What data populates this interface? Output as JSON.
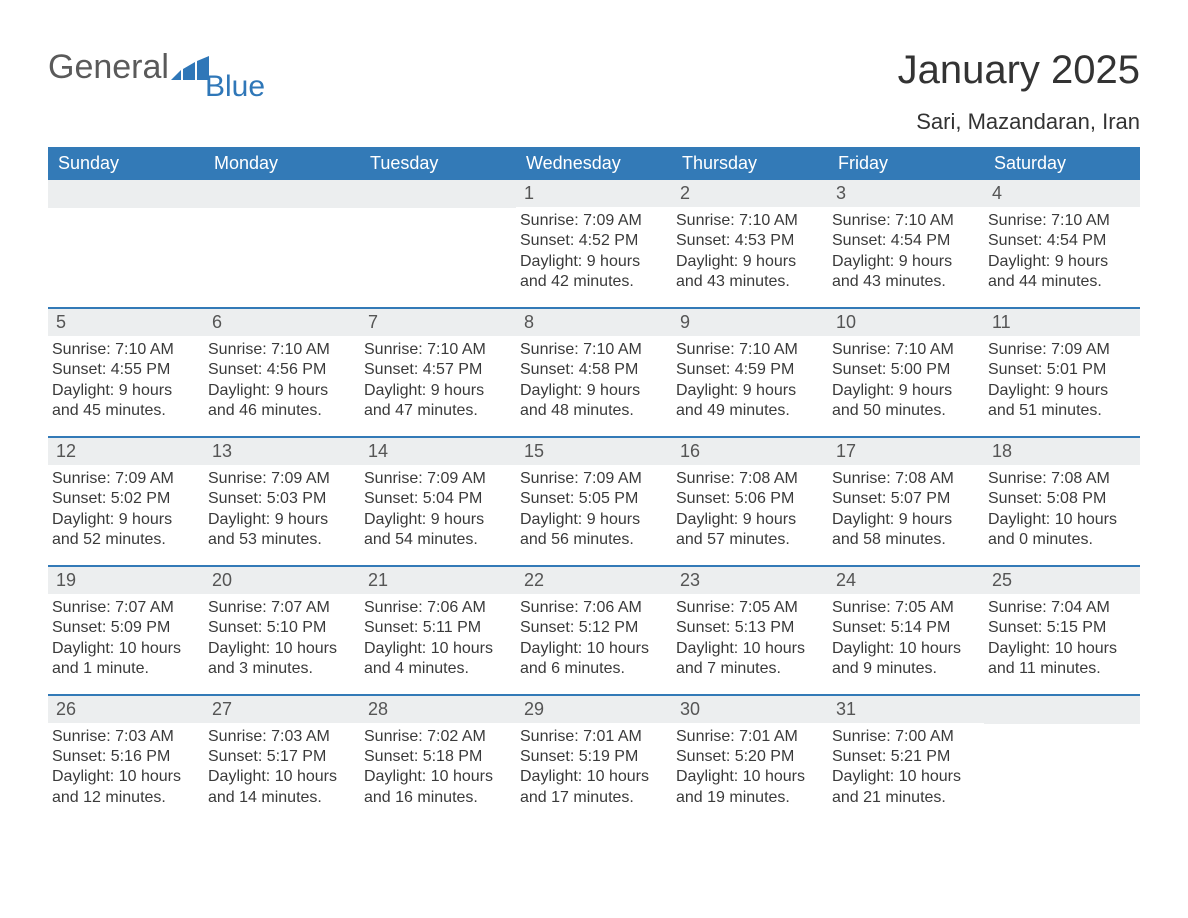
{
  "logo": {
    "general": "General",
    "blue": "Blue"
  },
  "title": {
    "month": "January 2025",
    "location": "Sari, Mazandaran, Iran"
  },
  "colors": {
    "header_bg": "#337ab7",
    "header_text": "#ffffff",
    "daynum_bg": "#eceeef",
    "daynum_text": "#555555",
    "body_text": "#3a3a3a",
    "week_divider": "#337ab7",
    "logo_gray": "#5a5a5a",
    "logo_blue": "#2f77b8",
    "background": "#ffffff"
  },
  "typography": {
    "month_fontsize": 40,
    "location_fontsize": 22,
    "dayname_fontsize": 18,
    "daynum_fontsize": 18,
    "body_fontsize": 16,
    "font_family": "Arial"
  },
  "daynames": [
    "Sunday",
    "Monday",
    "Tuesday",
    "Wednesday",
    "Thursday",
    "Friday",
    "Saturday"
  ],
  "leading_empty": 3,
  "trailing_empty": 1,
  "days": [
    {
      "n": "1",
      "sunrise": "Sunrise: 7:09 AM",
      "sunset": "Sunset: 4:52 PM",
      "dl1": "Daylight: 9 hours",
      "dl2": "and 42 minutes."
    },
    {
      "n": "2",
      "sunrise": "Sunrise: 7:10 AM",
      "sunset": "Sunset: 4:53 PM",
      "dl1": "Daylight: 9 hours",
      "dl2": "and 43 minutes."
    },
    {
      "n": "3",
      "sunrise": "Sunrise: 7:10 AM",
      "sunset": "Sunset: 4:54 PM",
      "dl1": "Daylight: 9 hours",
      "dl2": "and 43 minutes."
    },
    {
      "n": "4",
      "sunrise": "Sunrise: 7:10 AM",
      "sunset": "Sunset: 4:54 PM",
      "dl1": "Daylight: 9 hours",
      "dl2": "and 44 minutes."
    },
    {
      "n": "5",
      "sunrise": "Sunrise: 7:10 AM",
      "sunset": "Sunset: 4:55 PM",
      "dl1": "Daylight: 9 hours",
      "dl2": "and 45 minutes."
    },
    {
      "n": "6",
      "sunrise": "Sunrise: 7:10 AM",
      "sunset": "Sunset: 4:56 PM",
      "dl1": "Daylight: 9 hours",
      "dl2": "and 46 minutes."
    },
    {
      "n": "7",
      "sunrise": "Sunrise: 7:10 AM",
      "sunset": "Sunset: 4:57 PM",
      "dl1": "Daylight: 9 hours",
      "dl2": "and 47 minutes."
    },
    {
      "n": "8",
      "sunrise": "Sunrise: 7:10 AM",
      "sunset": "Sunset: 4:58 PM",
      "dl1": "Daylight: 9 hours",
      "dl2": "and 48 minutes."
    },
    {
      "n": "9",
      "sunrise": "Sunrise: 7:10 AM",
      "sunset": "Sunset: 4:59 PM",
      "dl1": "Daylight: 9 hours",
      "dl2": "and 49 minutes."
    },
    {
      "n": "10",
      "sunrise": "Sunrise: 7:10 AM",
      "sunset": "Sunset: 5:00 PM",
      "dl1": "Daylight: 9 hours",
      "dl2": "and 50 minutes."
    },
    {
      "n": "11",
      "sunrise": "Sunrise: 7:09 AM",
      "sunset": "Sunset: 5:01 PM",
      "dl1": "Daylight: 9 hours",
      "dl2": "and 51 minutes."
    },
    {
      "n": "12",
      "sunrise": "Sunrise: 7:09 AM",
      "sunset": "Sunset: 5:02 PM",
      "dl1": "Daylight: 9 hours",
      "dl2": "and 52 minutes."
    },
    {
      "n": "13",
      "sunrise": "Sunrise: 7:09 AM",
      "sunset": "Sunset: 5:03 PM",
      "dl1": "Daylight: 9 hours",
      "dl2": "and 53 minutes."
    },
    {
      "n": "14",
      "sunrise": "Sunrise: 7:09 AM",
      "sunset": "Sunset: 5:04 PM",
      "dl1": "Daylight: 9 hours",
      "dl2": "and 54 minutes."
    },
    {
      "n": "15",
      "sunrise": "Sunrise: 7:09 AM",
      "sunset": "Sunset: 5:05 PM",
      "dl1": "Daylight: 9 hours",
      "dl2": "and 56 minutes."
    },
    {
      "n": "16",
      "sunrise": "Sunrise: 7:08 AM",
      "sunset": "Sunset: 5:06 PM",
      "dl1": "Daylight: 9 hours",
      "dl2": "and 57 minutes."
    },
    {
      "n": "17",
      "sunrise": "Sunrise: 7:08 AM",
      "sunset": "Sunset: 5:07 PM",
      "dl1": "Daylight: 9 hours",
      "dl2": "and 58 minutes."
    },
    {
      "n": "18",
      "sunrise": "Sunrise: 7:08 AM",
      "sunset": "Sunset: 5:08 PM",
      "dl1": "Daylight: 10 hours",
      "dl2": "and 0 minutes."
    },
    {
      "n": "19",
      "sunrise": "Sunrise: 7:07 AM",
      "sunset": "Sunset: 5:09 PM",
      "dl1": "Daylight: 10 hours",
      "dl2": "and 1 minute."
    },
    {
      "n": "20",
      "sunrise": "Sunrise: 7:07 AM",
      "sunset": "Sunset: 5:10 PM",
      "dl1": "Daylight: 10 hours",
      "dl2": "and 3 minutes."
    },
    {
      "n": "21",
      "sunrise": "Sunrise: 7:06 AM",
      "sunset": "Sunset: 5:11 PM",
      "dl1": "Daylight: 10 hours",
      "dl2": "and 4 minutes."
    },
    {
      "n": "22",
      "sunrise": "Sunrise: 7:06 AM",
      "sunset": "Sunset: 5:12 PM",
      "dl1": "Daylight: 10 hours",
      "dl2": "and 6 minutes."
    },
    {
      "n": "23",
      "sunrise": "Sunrise: 7:05 AM",
      "sunset": "Sunset: 5:13 PM",
      "dl1": "Daylight: 10 hours",
      "dl2": "and 7 minutes."
    },
    {
      "n": "24",
      "sunrise": "Sunrise: 7:05 AM",
      "sunset": "Sunset: 5:14 PM",
      "dl1": "Daylight: 10 hours",
      "dl2": "and 9 minutes."
    },
    {
      "n": "25",
      "sunrise": "Sunrise: 7:04 AM",
      "sunset": "Sunset: 5:15 PM",
      "dl1": "Daylight: 10 hours",
      "dl2": "and 11 minutes."
    },
    {
      "n": "26",
      "sunrise": "Sunrise: 7:03 AM",
      "sunset": "Sunset: 5:16 PM",
      "dl1": "Daylight: 10 hours",
      "dl2": "and 12 minutes."
    },
    {
      "n": "27",
      "sunrise": "Sunrise: 7:03 AM",
      "sunset": "Sunset: 5:17 PM",
      "dl1": "Daylight: 10 hours",
      "dl2": "and 14 minutes."
    },
    {
      "n": "28",
      "sunrise": "Sunrise: 7:02 AM",
      "sunset": "Sunset: 5:18 PM",
      "dl1": "Daylight: 10 hours",
      "dl2": "and 16 minutes."
    },
    {
      "n": "29",
      "sunrise": "Sunrise: 7:01 AM",
      "sunset": "Sunset: 5:19 PM",
      "dl1": "Daylight: 10 hours",
      "dl2": "and 17 minutes."
    },
    {
      "n": "30",
      "sunrise": "Sunrise: 7:01 AM",
      "sunset": "Sunset: 5:20 PM",
      "dl1": "Daylight: 10 hours",
      "dl2": "and 19 minutes."
    },
    {
      "n": "31",
      "sunrise": "Sunrise: 7:00 AM",
      "sunset": "Sunset: 5:21 PM",
      "dl1": "Daylight: 10 hours",
      "dl2": "and 21 minutes."
    }
  ]
}
